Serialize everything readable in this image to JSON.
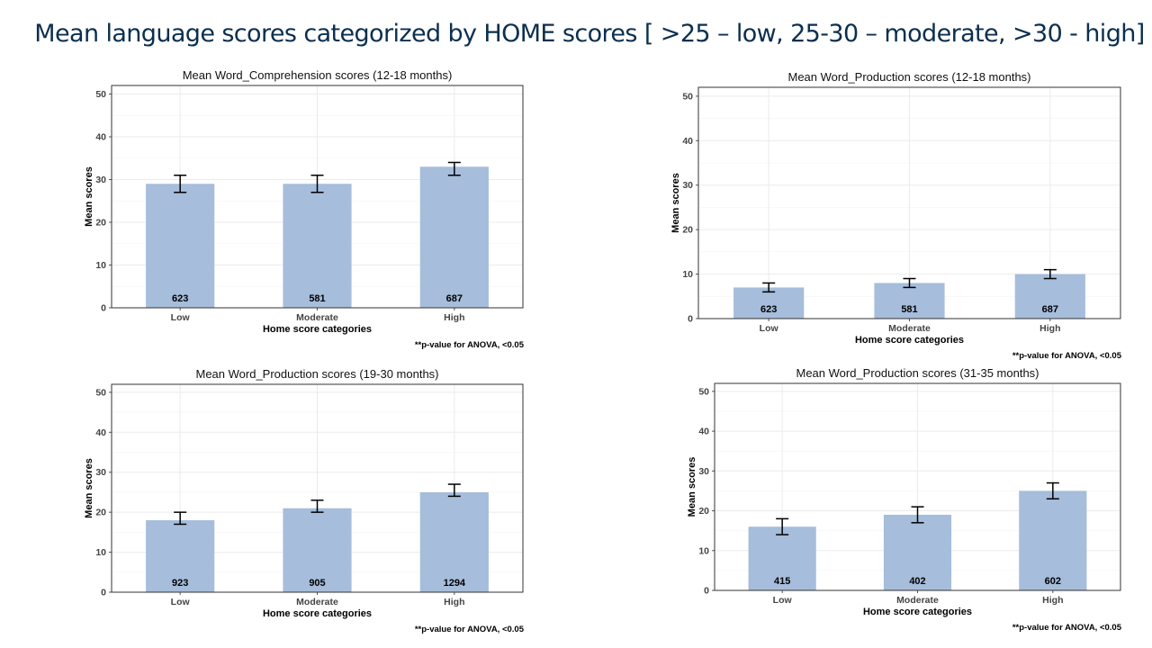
{
  "slide": {
    "title": "Mean language scores categorized by HOME scores [ >25 – low, 25-30 – moderate, >30 - high]"
  },
  "colors": {
    "bar": "#a6bddb",
    "error_bar": "#000000",
    "grid": "#ebebeb",
    "panel_border": "#333333"
  },
  "chart_data": [
    {
      "type": "bar",
      "title": "Mean Word_Comprehension scores (12-18 months)",
      "xlabel": "Home score categories",
      "ylabel": "Mean scores",
      "categories": [
        "Low",
        "Moderate",
        "High"
      ],
      "values": [
        29,
        29,
        33
      ],
      "error_low": [
        27,
        27,
        31
      ],
      "error_high": [
        31,
        31,
        34
      ],
      "bar_labels": [
        "623",
        "581",
        "687"
      ],
      "ylim": [
        0,
        52
      ],
      "yticks": [
        0,
        10,
        20,
        30,
        40,
        50
      ],
      "grid": true,
      "note": "**p-value  for ANOVA,  <0.05"
    },
    {
      "type": "bar",
      "title": "Mean Word_Production scores (12-18 months)",
      "xlabel": "Home score categories",
      "ylabel": "Mean scores",
      "categories": [
        "Low",
        "Moderate",
        "High"
      ],
      "values": [
        7,
        8,
        10
      ],
      "error_low": [
        6,
        7,
        9
      ],
      "error_high": [
        8,
        9,
        11
      ],
      "bar_labels": [
        "623",
        "581",
        "687"
      ],
      "ylim": [
        0,
        52
      ],
      "yticks": [
        0,
        10,
        20,
        30,
        40,
        50
      ],
      "grid": true,
      "note": "**p-value  for ANOVA,  <0.05"
    },
    {
      "type": "bar",
      "title": "Mean Word_Production scores (19-30 months)",
      "xlabel": "Home score categories",
      "ylabel": "Mean scores",
      "categories": [
        "Low",
        "Moderate",
        "High"
      ],
      "values": [
        18,
        21,
        25
      ],
      "error_low": [
        17,
        20,
        24
      ],
      "error_high": [
        20,
        23,
        27
      ],
      "bar_labels": [
        "923",
        "905",
        "1294"
      ],
      "ylim": [
        0,
        52
      ],
      "yticks": [
        0,
        10,
        20,
        30,
        40,
        50
      ],
      "grid": true,
      "note": "**p-value  for ANOVA,  <0.05"
    },
    {
      "type": "bar",
      "title": "Mean Word_Production scores (31-35 months)",
      "xlabel": "Home score categories",
      "ylabel": "Mean scores",
      "categories": [
        "Low",
        "Moderate",
        "High"
      ],
      "values": [
        16,
        19,
        25
      ],
      "error_low": [
        14,
        17,
        23
      ],
      "error_high": [
        18,
        21,
        27
      ],
      "bar_labels": [
        "415",
        "402",
        "602"
      ],
      "ylim": [
        0,
        52
      ],
      "yticks": [
        0,
        10,
        20,
        30,
        40,
        50
      ],
      "grid": true,
      "note": "**p-value  for ANOVA,  <0.05"
    }
  ]
}
